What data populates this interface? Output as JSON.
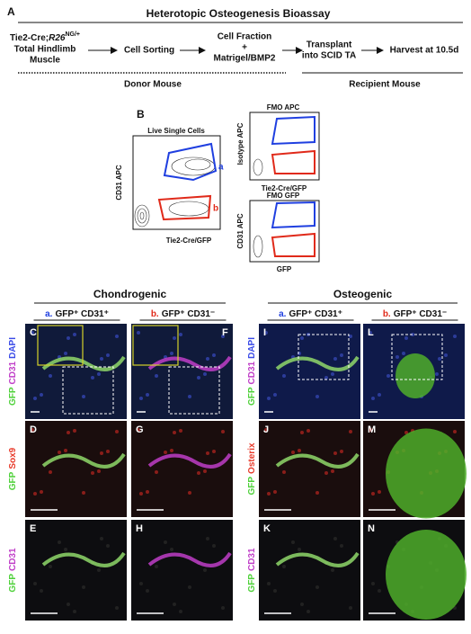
{
  "panel_a": {
    "letter": "A",
    "title": "Heterotopic Osteogenesis Bioassay",
    "step1": {
      "line1": "Tie2-Cre;",
      "line1_italic": "R26",
      "line1_sup": "NG/+",
      "line2": "Total Hindlimb",
      "line3": "Muscle"
    },
    "step2": "Cell Sorting",
    "step3": {
      "line1": "Cell Fraction",
      "line2": "+",
      "line3": "Matrigel/BMP2"
    },
    "step4": {
      "line1": "Transplant",
      "line2": "into SCID TA"
    },
    "step5": "Harvest at 10.5d",
    "donor": "Donor Mouse",
    "recipient": "Recipient Mouse"
  },
  "panel_b": {
    "letter": "B",
    "main": {
      "title": "Live Single Cells",
      "ylabel": "CD31 APC",
      "xlabel": "Tie2-Cre/GFP",
      "gate_a": "a",
      "gate_b": "b"
    },
    "fmo_apc": {
      "title": "FMO APC",
      "ylabel": "Isotype APC",
      "xlabel": "Tie2-Cre/GFP"
    },
    "fmo_gfp": {
      "title": "FMO GFP",
      "ylabel": "CD31 APC",
      "xlabel": "GFP"
    }
  },
  "histology": {
    "groups": [
      {
        "title": "Chondrogenic",
        "cols": [
          {
            "prefix": "a.",
            "label": "GFP⁺ CD31⁺"
          },
          {
            "prefix": "b.",
            "label": "GFP⁺ CD31⁻"
          }
        ]
      },
      {
        "title": "Osteogenic",
        "cols": [
          {
            "prefix": "a.",
            "label": "GFP⁺ CD31⁺"
          },
          {
            "prefix": "b.",
            "label": "GFP⁺ CD31⁻"
          }
        ]
      }
    ],
    "row_labels": [
      {
        "left": [
          "GFP",
          "CD31",
          "DAPI"
        ],
        "right": [
          "GFP",
          "CD31",
          "DAPI"
        ]
      },
      {
        "left": [
          "GFP",
          "Sox9"
        ],
        "right": [
          "GFP",
          "Osterix"
        ]
      },
      {
        "left": [
          "GFP",
          "CD31"
        ],
        "right": [
          "GFP",
          "CD31"
        ]
      }
    ],
    "panels": [
      [
        "C",
        "F",
        "I",
        "L"
      ],
      [
        "D",
        "G",
        "J",
        "M"
      ],
      [
        "E",
        "H",
        "K",
        "N"
      ]
    ]
  }
}
